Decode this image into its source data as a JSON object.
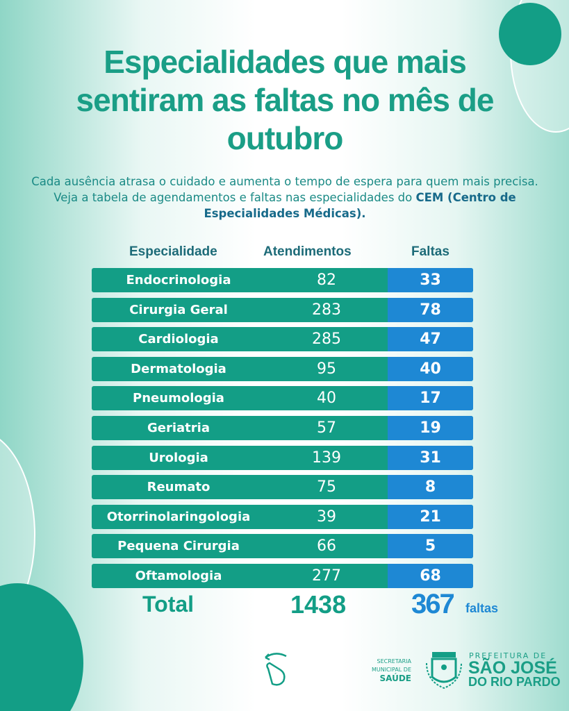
{
  "title": "Especialidades que mais sentiram as faltas  no mês de outubro",
  "subtitle_pre": "Cada ausência atrasa o cuidado e aumenta o tempo de espera para quem mais precisa. Veja a tabela de agendamentos e faltas nas especialidades do ",
  "subtitle_bold": "CEM (Centro de Especialidades Médicas).",
  "table": {
    "headers": [
      "Especialidade",
      "Atendimentos",
      "Faltas"
    ],
    "rows": [
      [
        "Endocrinologia",
        "82",
        "33"
      ],
      [
        "Cirurgia Geral",
        "283",
        "78"
      ],
      [
        "Cardiologia",
        "285",
        "47"
      ],
      [
        "Dermatologia",
        "95",
        "40"
      ],
      [
        "Pneumologia",
        "40",
        "17"
      ],
      [
        "Geriatria",
        "57",
        "19"
      ],
      [
        "Urologia",
        "139",
        "31"
      ],
      [
        "Reumato",
        "75",
        "8"
      ],
      [
        "Otorrinolaringologia",
        "39",
        "21"
      ],
      [
        "Pequena Cirurgia",
        "66",
        "5"
      ],
      [
        "Oftamologia",
        "277",
        "68"
      ]
    ],
    "total_label": "Total",
    "total_atendimentos": "1438",
    "total_faltas": "367",
    "faltas_suffix": "faltas"
  },
  "footer": {
    "secretaria_line1": "SECRETARIA",
    "secretaria_line2": "MUNICIPAL DE",
    "secretaria_line3": "SAÚDE",
    "prefeitura": "PREFEITURA DE",
    "city1": "SÃO JOSÉ",
    "city2": "DO RIO PARDO"
  },
  "colors": {
    "teal": "#139e86",
    "blue": "#1e88d4",
    "header": "#1d6b78"
  }
}
